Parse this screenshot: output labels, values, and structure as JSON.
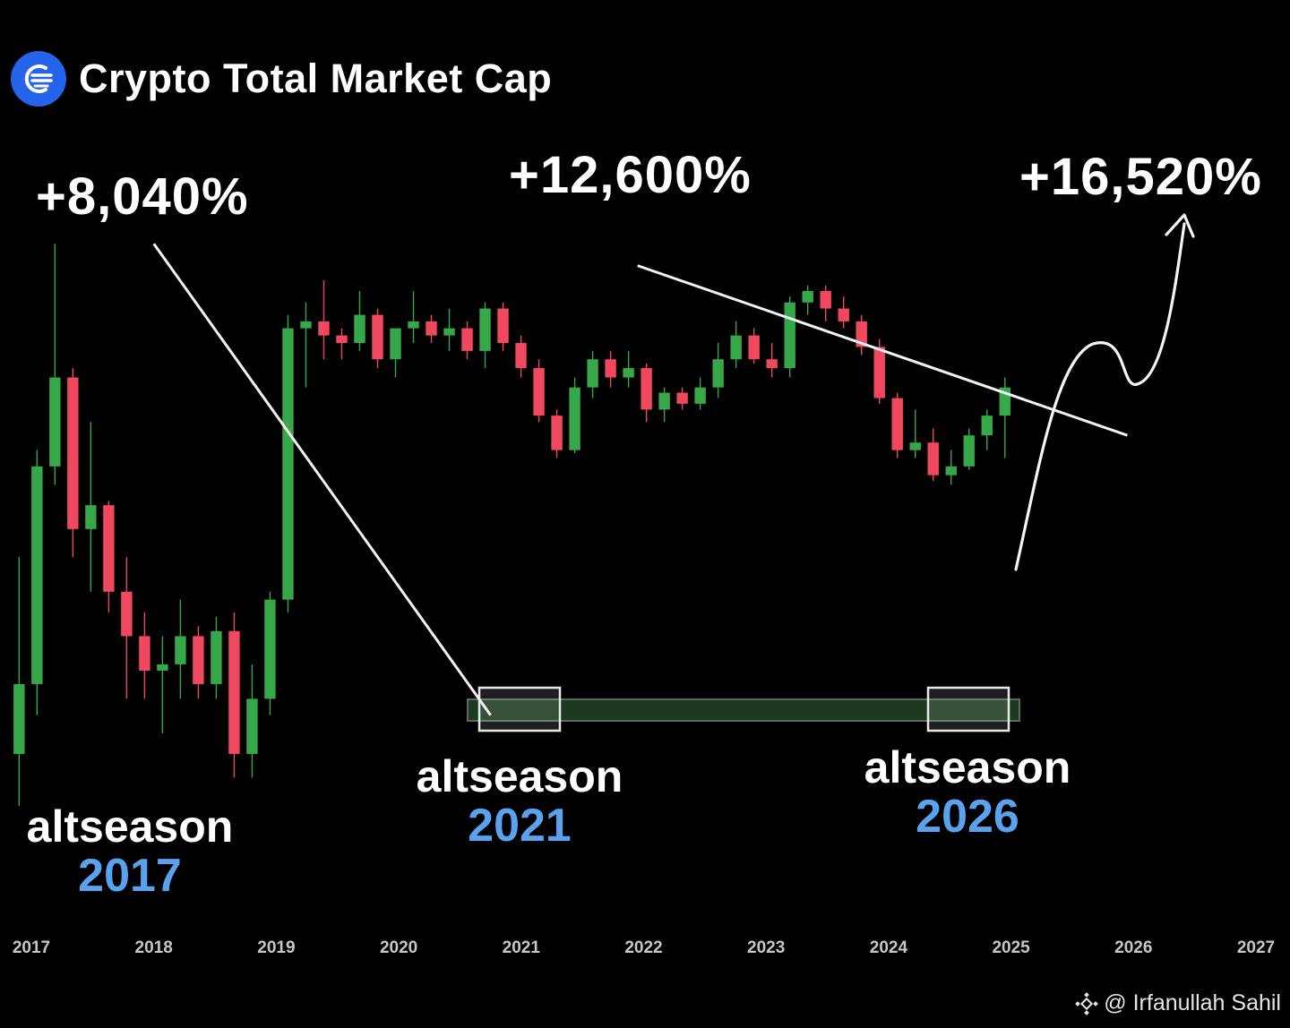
{
  "header": {
    "title": "Crypto Total Market Cap",
    "logo_icon": "signal-logo-icon"
  },
  "gains": [
    {
      "label": "+8,040%"
    },
    {
      "label": "+12,600%"
    },
    {
      "label": "+16,520%"
    }
  ],
  "altseasons": [
    {
      "word": "altseason",
      "year": "2017"
    },
    {
      "word": "altseason",
      "year": "2021"
    },
    {
      "word": "altseason",
      "year": "2026"
    }
  ],
  "watermark": {
    "icon": "binance-diamond-icon",
    "text": "@ Irfanullah Sahil"
  },
  "colors": {
    "up": "#37a84a",
    "down": "#f0485f",
    "accent": "#5aa2ee",
    "logo": "#2563eb",
    "zone": "#1d3a20"
  },
  "chart_data": {
    "type": "candlestick",
    "title": "Crypto Total Market Cap",
    "x_ticks": [
      "2017",
      "2018",
      "2019",
      "2020",
      "2021",
      "2022",
      "2023",
      "2024",
      "2025",
      "2026",
      "2027"
    ],
    "y_axis_shown": false,
    "candles": [
      {
        "o": 0.14,
        "h": 0.5,
        "l": 0.1,
        "c": 0.22
      },
      {
        "o": 0.22,
        "h": 1.0,
        "l": 0.18,
        "c": 0.9
      },
      {
        "o": 0.9,
        "h": 3.8,
        "l": 0.8,
        "c": 1.6
      },
      {
        "o": 1.6,
        "h": 1.7,
        "l": 0.5,
        "c": 0.6
      },
      {
        "o": 0.6,
        "h": 1.2,
        "l": 0.4,
        "c": 0.7
      },
      {
        "o": 0.7,
        "h": 0.72,
        "l": 0.35,
        "c": 0.4
      },
      {
        "o": 0.4,
        "h": 0.5,
        "l": 0.2,
        "c": 0.3
      },
      {
        "o": 0.3,
        "h": 0.35,
        "l": 0.2,
        "c": 0.24
      },
      {
        "o": 0.24,
        "h": 0.3,
        "l": 0.16,
        "c": 0.25
      },
      {
        "o": 0.25,
        "h": 0.38,
        "l": 0.2,
        "c": 0.3
      },
      {
        "o": 0.3,
        "h": 0.32,
        "l": 0.2,
        "c": 0.22
      },
      {
        "o": 0.22,
        "h": 0.34,
        "l": 0.2,
        "c": 0.31
      },
      {
        "o": 0.31,
        "h": 0.35,
        "l": 0.12,
        "c": 0.14
      },
      {
        "o": 0.14,
        "h": 0.25,
        "l": 0.12,
        "c": 0.2
      },
      {
        "o": 0.2,
        "h": 0.4,
        "l": 0.18,
        "c": 0.38
      },
      {
        "o": 0.38,
        "h": 2.4,
        "l": 0.35,
        "c": 2.2
      },
      {
        "o": 2.2,
        "h": 2.6,
        "l": 1.5,
        "c": 2.3
      },
      {
        "o": 2.3,
        "h": 3.0,
        "l": 1.8,
        "c": 2.1
      },
      {
        "o": 2.1,
        "h": 2.2,
        "l": 1.8,
        "c": 2.0
      },
      {
        "o": 2.0,
        "h": 2.8,
        "l": 1.9,
        "c": 2.4
      },
      {
        "o": 2.4,
        "h": 2.5,
        "l": 1.7,
        "c": 1.8
      },
      {
        "o": 1.8,
        "h": 2.2,
        "l": 1.6,
        "c": 2.2
      },
      {
        "o": 2.2,
        "h": 2.8,
        "l": 2.0,
        "c": 2.3
      },
      {
        "o": 2.3,
        "h": 2.4,
        "l": 2.0,
        "c": 2.1
      },
      {
        "o": 2.1,
        "h": 2.5,
        "l": 1.9,
        "c": 2.2
      },
      {
        "o": 2.2,
        "h": 2.3,
        "l": 1.8,
        "c": 1.9
      },
      {
        "o": 1.9,
        "h": 2.6,
        "l": 1.7,
        "c": 2.5
      },
      {
        "o": 2.5,
        "h": 2.6,
        "l": 1.9,
        "c": 2.0
      },
      {
        "o": 2.0,
        "h": 2.1,
        "l": 1.6,
        "c": 1.7
      },
      {
        "o": 1.7,
        "h": 1.8,
        "l": 1.2,
        "c": 1.25
      },
      {
        "o": 1.25,
        "h": 1.3,
        "l": 0.95,
        "c": 1.0
      },
      {
        "o": 1.0,
        "h": 1.6,
        "l": 0.98,
        "c": 1.5
      },
      {
        "o": 1.5,
        "h": 1.9,
        "l": 1.4,
        "c": 1.8
      },
      {
        "o": 1.8,
        "h": 1.9,
        "l": 1.5,
        "c": 1.6
      },
      {
        "o": 1.6,
        "h": 1.9,
        "l": 1.5,
        "c": 1.7
      },
      {
        "o": 1.7,
        "h": 1.75,
        "l": 1.2,
        "c": 1.3
      },
      {
        "o": 1.3,
        "h": 1.5,
        "l": 1.2,
        "c": 1.45
      },
      {
        "o": 1.45,
        "h": 1.5,
        "l": 1.3,
        "c": 1.35
      },
      {
        "o": 1.35,
        "h": 1.6,
        "l": 1.3,
        "c": 1.5
      },
      {
        "o": 1.5,
        "h": 2.0,
        "l": 1.4,
        "c": 1.8
      },
      {
        "o": 1.8,
        "h": 2.3,
        "l": 1.7,
        "c": 2.1
      },
      {
        "o": 2.1,
        "h": 2.2,
        "l": 1.75,
        "c": 1.8
      },
      {
        "o": 1.8,
        "h": 2.0,
        "l": 1.6,
        "c": 1.7
      },
      {
        "o": 1.7,
        "h": 2.7,
        "l": 1.6,
        "c": 2.6
      },
      {
        "o": 2.6,
        "h": 2.9,
        "l": 2.4,
        "c": 2.8
      },
      {
        "o": 2.8,
        "h": 2.9,
        "l": 2.3,
        "c": 2.5
      },
      {
        "o": 2.5,
        "h": 2.7,
        "l": 2.2,
        "c": 2.3
      },
      {
        "o": 2.3,
        "h": 2.4,
        "l": 1.85,
        "c": 1.95
      },
      {
        "o": 1.95,
        "h": 2.05,
        "l": 1.35,
        "c": 1.4
      },
      {
        "o": 1.4,
        "h": 1.45,
        "l": 0.95,
        "c": 1.0
      },
      {
        "o": 1.0,
        "h": 1.3,
        "l": 0.95,
        "c": 1.05
      },
      {
        "o": 1.05,
        "h": 1.15,
        "l": 0.82,
        "c": 0.85
      },
      {
        "o": 0.85,
        "h": 1.0,
        "l": 0.8,
        "c": 0.9
      },
      {
        "o": 0.9,
        "h": 1.15,
        "l": 0.88,
        "c": 1.1
      },
      {
        "o": 1.1,
        "h": 1.3,
        "l": 1.0,
        "c": 1.25
      },
      {
        "o": 1.25,
        "h": 1.6,
        "l": 0.95,
        "c": 1.5
      }
    ],
    "trendlines": [
      {
        "from": {
          "year": 2018.0,
          "value": 3.8
        },
        "to": {
          "year": 2020.75,
          "value": 0.18
        }
      },
      {
        "from": {
          "year": 2021.95,
          "value": 3.3
        },
        "to": {
          "year": 2025.95,
          "value": 1.1
        }
      }
    ],
    "annotations": [
      {
        "text": "+8,040%",
        "year": 2018.0
      },
      {
        "text": "+12,600%",
        "year": 2021.9
      },
      {
        "text": "+16,520%",
        "year": 2026.1,
        "projection": "curved arrow upward"
      },
      {
        "text": "altseason 2017",
        "year": 2017.8
      },
      {
        "text": "altseason 2021",
        "year": 2021.0
      },
      {
        "text": "altseason 2026",
        "year": 2024.7
      }
    ]
  }
}
